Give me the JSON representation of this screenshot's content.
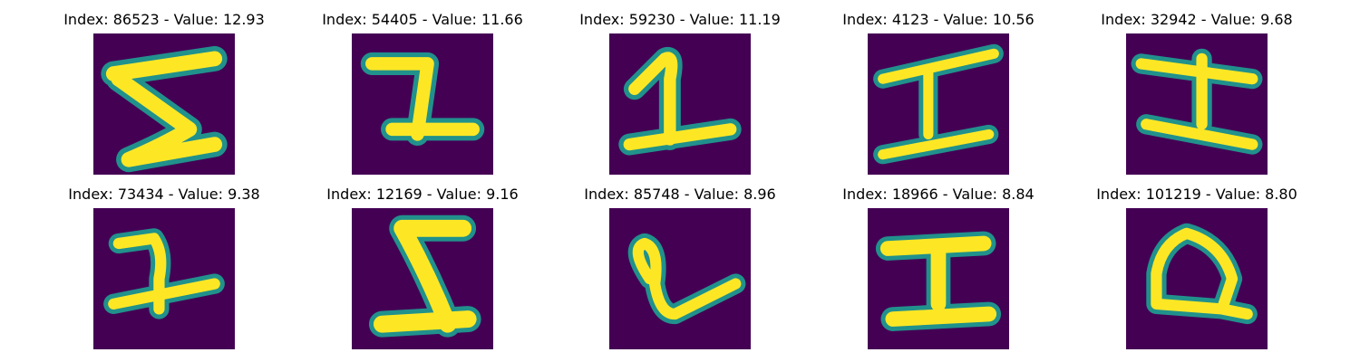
{
  "colors": {
    "background": "#440154",
    "stroke_edge": "#21918c",
    "stroke_mid": "#7ad151",
    "stroke_core": "#fde725"
  },
  "panels": [
    {
      "title": "Index: 86523 - Value: 12.93"
    },
    {
      "title": "Index: 54405 - Value: 11.66"
    },
    {
      "title": "Index: 59230 - Value: 11.19"
    },
    {
      "title": "Index: 4123 - Value: 10.56"
    },
    {
      "title": "Index: 32942 - Value: 9.68"
    },
    {
      "title": "Index: 73434 - Value: 9.38"
    },
    {
      "title": "Index: 12169 - Value: 9.16"
    },
    {
      "title": "Index: 85748 - Value: 8.96"
    },
    {
      "title": "Index: 18966 - Value: 8.84"
    },
    {
      "title": "Index: 101219 - Value: 8.80"
    }
  ]
}
